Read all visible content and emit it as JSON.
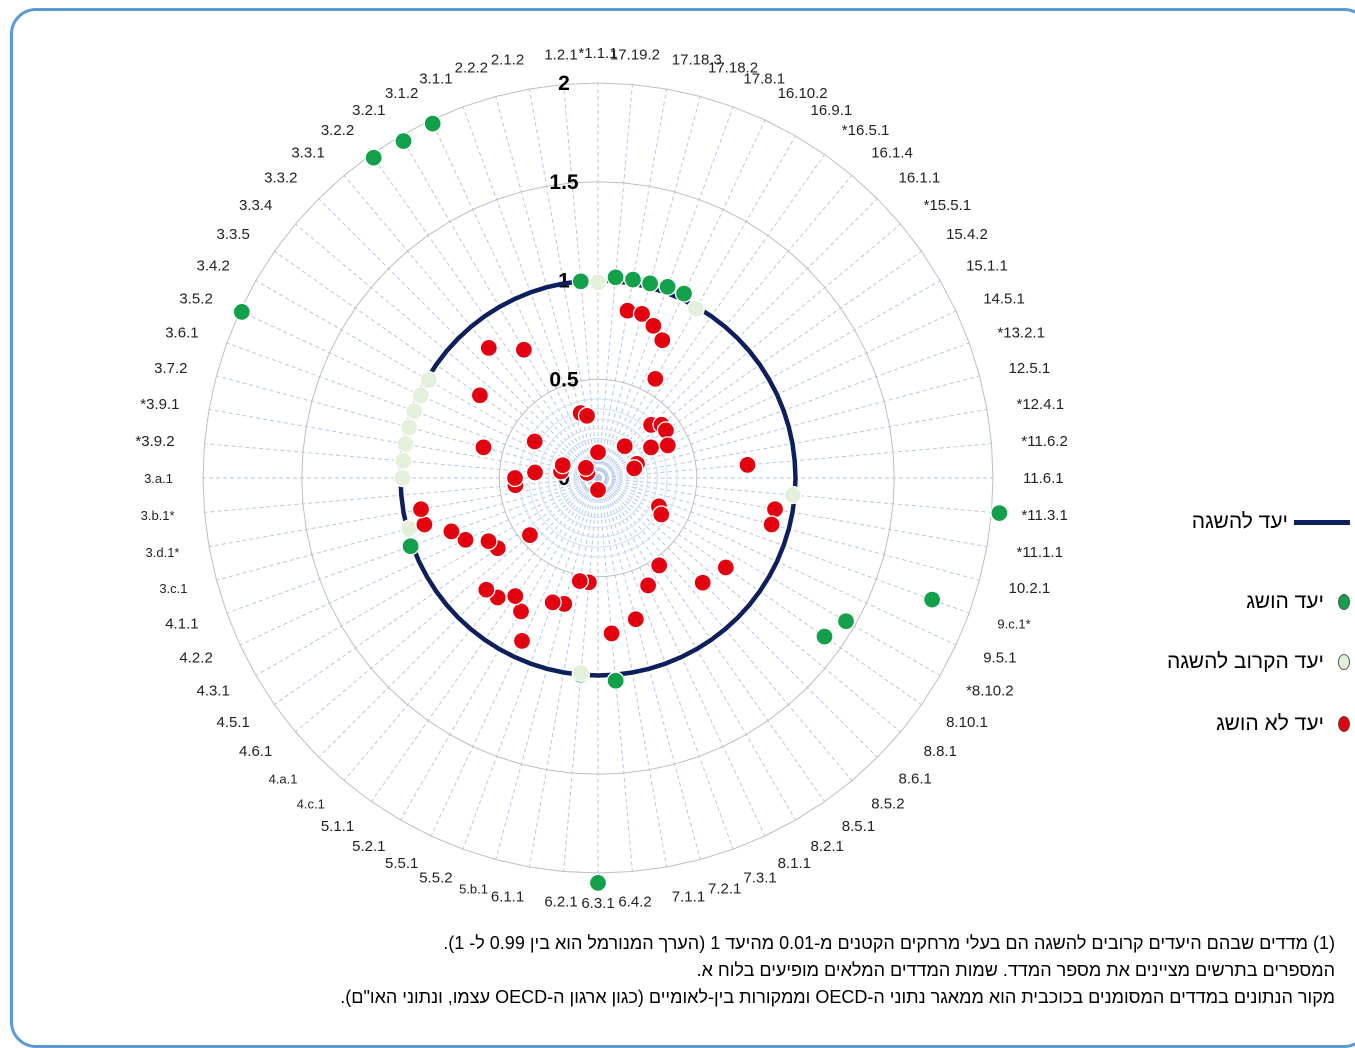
{
  "colors": {
    "frame": "#5b9bd5",
    "target_line": "#0d1f5c",
    "achieved": "#12a04a",
    "near": "#e4efdc",
    "not_achieved": "#e3000f",
    "grid": "#bfbfbf",
    "spoke": "#b4c7e7"
  },
  "legend": {
    "target": "יעד להשגה",
    "achieved": "יעד הושג",
    "near": "יעד הקרוב להשגה",
    "not_achieved": "יעד לא הושג"
  },
  "footnotes": [
    "(1) מדדים שבהם היעדים קרובים להשגה הם בעלי מרחקים הקטנים מ-0.01 מהיעד 1 (הערך המנורמל הוא בין 0.99 ל- 1).",
    "המספרים בתרשים מציינים את מספר המדד. שמות המדדים המלאים מופיעים בלוח א.",
    "מקור הנתונים במדדים המסומנים בכוכבית הוא ממאגר נתוני ה-OECD וממקורות בין-לאומיים (כגון ארגון ה-OECD עצמו, ונתוני האו\"ם)."
  ],
  "chart_data": {
    "type": "radar",
    "title": "",
    "rlim": [
      0,
      2
    ],
    "r_ticks": [
      "0",
      "0.5",
      "1",
      "1.5",
      "2"
    ],
    "target_value": 1,
    "grid": true,
    "legend_position": "right",
    "categories": [
      "*1.1.1",
      "17.19.2",
      "17.18.3",
      "17.18.2",
      "17.8.1",
      "16.10.2",
      "16.9.1",
      "*16.5.1",
      "16.1.4",
      "16.1.1",
      "*15.5.1",
      "15.4.2",
      "15.1.1",
      "14.5.1",
      "*13.2.1",
      "12.5.1",
      "*12.4.1",
      "*11.6.2",
      "11.6.1",
      "*11.3.1",
      "*11.1.1",
      "10.2.1",
      "9.c.1*",
      "9.5.1",
      "*8.10.2",
      "8.10.1",
      "8.8.1",
      "8.6.1",
      "8.5.2",
      "8.5.1",
      "8.2.1",
      "8.1.1",
      "7.3.1",
      "7.2.1",
      "7.1.1",
      "6.4.2",
      "6.3.1",
      "6.2.1",
      "6.1.1",
      "5.b.1",
      "5.5.2",
      "5.5.1",
      "5.2.1",
      "5.1.1",
      "4.c.1",
      "4.a.1",
      "4.6.1",
      "4.5.1",
      "4.3.1",
      "4.2.2",
      "4.1.1",
      "3.c.1",
      "3.d.1*",
      "3.b.1*",
      "3.a.1",
      "*3.9.2",
      "*3.9.1",
      "3.7.2",
      "3.6.1",
      "3.5.2",
      "3.4.2",
      "3.3.5",
      "3.3.4",
      "3.3.2",
      "3.3.1",
      "3.2.2",
      "3.2.1",
      "3.1.2",
      "3.1.1",
      "2.2.2",
      "2.1.2",
      "1.2.1"
    ],
    "series": [
      {
        "name": "יעד להשגה",
        "kind": "line",
        "values": [
          1,
          1,
          1,
          1,
          1,
          1,
          1,
          1,
          1,
          1,
          1,
          1,
          1,
          1,
          1,
          1,
          1,
          1,
          1,
          1,
          1,
          1,
          1,
          1,
          1,
          1,
          1,
          1,
          1,
          1,
          1,
          1,
          1,
          1,
          1,
          1,
          1,
          1,
          1,
          1,
          1,
          1,
          1,
          1,
          1,
          1,
          1,
          1,
          1,
          1,
          1,
          1,
          1,
          1,
          1,
          1,
          1,
          1,
          1,
          1,
          1,
          1,
          1,
          1,
          1,
          1,
          1,
          1,
          1,
          1,
          1,
          1
        ]
      },
      {
        "name": "יעד הושג",
        "kind": "markers",
        "values": [
          null,
          1.02,
          1.02,
          1.02,
          1.03,
          1.03,
          null,
          null,
          null,
          null,
          null,
          null,
          null,
          null,
          null,
          null,
          null,
          null,
          null,
          2.04,
          null,
          null,
          1.8,
          null,
          1.45,
          1.4,
          null,
          null,
          null,
          null,
          null,
          null,
          null,
          null,
          null,
          1.03,
          2.05,
          1.0,
          null,
          null,
          null,
          null,
          null,
          null,
          null,
          null,
          null,
          null,
          null,
          null,
          1.01,
          null,
          null,
          null,
          null,
          null,
          null,
          null,
          null,
          1.99,
          null,
          null,
          null,
          null,
          null,
          1.98,
          1.97,
          1.98,
          null,
          null,
          null,
          1.0
        ]
      },
      {
        "name": "יעד הקרוב להשגה",
        "kind": "markers",
        "values": [
          0.99,
          null,
          null,
          null,
          null,
          null,
          0.99,
          null,
          null,
          null,
          null,
          null,
          null,
          null,
          null,
          null,
          null,
          null,
          null,
          0.99,
          null,
          null,
          null,
          null,
          null,
          null,
          null,
          null,
          null,
          null,
          null,
          null,
          null,
          null,
          null,
          null,
          null,
          0.99,
          null,
          null,
          null,
          null,
          null,
          null,
          null,
          null,
          null,
          null,
          null,
          null,
          null,
          0.99,
          null,
          null,
          0.99,
          0.99,
          0.99,
          0.99,
          0.99,
          0.99,
          0.99,
          null,
          null,
          null,
          null,
          null,
          null,
          null,
          null,
          null,
          null,
          null
        ]
      },
      {
        "name": "יעד לא הושג",
        "kind": "markers",
        "values": [
          0.13,
          null,
          0.86,
          0.86,
          0.82,
          0.77,
          0.58,
          null,
          0.21,
          0.38,
          0.42,
          0.42,
          0.31,
          0.39,
          0.21,
          0.19,
          null,
          0.76,
          null,
          null,
          0.91,
          0.91,
          null,
          0.34,
          0.37,
          0.79,
          null,
          0.75,
          null,
          0.54,
          null,
          0.6,
          null,
          0.74,
          null,
          0.79,
          0.06,
          0.53,
          0.53,
          0.66,
          0.67,
          0.91,
          0.78,
          0.73,
          0.79,
          0.8,
          0.45,
          0.62,
          0.64,
          0.74,
          0.79,
          0.91,
          0.91,
          0.42,
          0.42,
          0.32,
          0.19,
          0.6,
          0.19,
          0.06,
          0.37,
          0.73,
          0.08,
          null,
          0.86,
          null,
          0.75,
          null,
          null,
          0.34,
          0.32,
          null
        ]
      }
    ]
  }
}
